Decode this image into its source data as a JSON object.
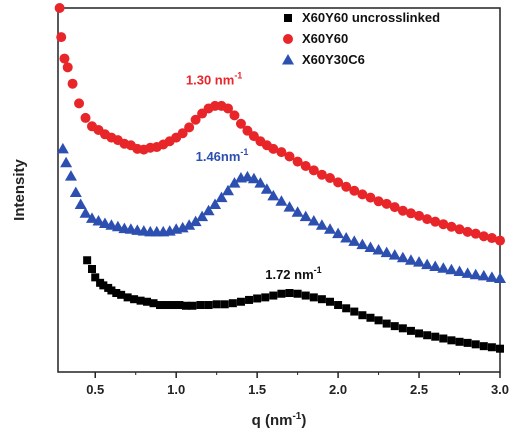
{
  "chart_data": {
    "type": "scatter",
    "title": "",
    "xlabel": "q (nm",
    "xlabel_sup": "-1",
    "xlabel_suffix": ")",
    "ylabel": "Intensity",
    "xlim": [
      0.27,
      3.0
    ],
    "ylim": [
      0,
      100
    ],
    "x_ticks": [
      "0.5",
      "1.0",
      "1.5",
      "2.0",
      "2.5",
      "3.0"
    ],
    "x_tick_values": [
      0.5,
      1.0,
      1.5,
      2.0,
      2.5,
      3.0
    ],
    "y_ticks_shown": false,
    "legend_position": "top-right",
    "series": [
      {
        "name": "X60Y60 uncrosslinked",
        "color": "#000000",
        "marker": "square",
        "points": [
          [
            0.45,
            30.7
          ],
          [
            0.48,
            28.3
          ],
          [
            0.5,
            26.0
          ],
          [
            0.53,
            24.5
          ],
          [
            0.55,
            23.8
          ],
          [
            0.58,
            23.1
          ],
          [
            0.6,
            22.4
          ],
          [
            0.63,
            21.7
          ],
          [
            0.66,
            21.2
          ],
          [
            0.7,
            20.5
          ],
          [
            0.74,
            20.0
          ],
          [
            0.78,
            19.6
          ],
          [
            0.82,
            19.3
          ],
          [
            0.86,
            18.9
          ],
          [
            0.9,
            18.4
          ],
          [
            0.94,
            18.4
          ],
          [
            0.98,
            18.4
          ],
          [
            1.02,
            18.4
          ],
          [
            1.06,
            18.2
          ],
          [
            1.1,
            18.2
          ],
          [
            1.15,
            18.4
          ],
          [
            1.2,
            18.4
          ],
          [
            1.25,
            18.6
          ],
          [
            1.3,
            18.6
          ],
          [
            1.35,
            18.9
          ],
          [
            1.4,
            19.3
          ],
          [
            1.45,
            19.8
          ],
          [
            1.5,
            20.2
          ],
          [
            1.55,
            20.5
          ],
          [
            1.6,
            21.0
          ],
          [
            1.65,
            21.5
          ],
          [
            1.7,
            21.7
          ],
          [
            1.75,
            21.5
          ],
          [
            1.8,
            21.0
          ],
          [
            1.85,
            20.5
          ],
          [
            1.9,
            20.0
          ],
          [
            1.95,
            19.3
          ],
          [
            2.0,
            18.4
          ],
          [
            2.05,
            17.5
          ],
          [
            2.1,
            16.6
          ],
          [
            2.15,
            15.6
          ],
          [
            2.2,
            14.9
          ],
          [
            2.25,
            14.2
          ],
          [
            2.3,
            13.3
          ],
          [
            2.35,
            12.6
          ],
          [
            2.4,
            12.0
          ],
          [
            2.45,
            11.3
          ],
          [
            2.5,
            10.6
          ],
          [
            2.55,
            10.1
          ],
          [
            2.6,
            9.7
          ],
          [
            2.65,
            9.2
          ],
          [
            2.7,
            8.7
          ],
          [
            2.75,
            8.3
          ],
          [
            2.8,
            8.0
          ],
          [
            2.85,
            7.6
          ],
          [
            2.9,
            7.1
          ],
          [
            2.95,
            6.8
          ],
          [
            3.0,
            6.4
          ]
        ]
      },
      {
        "name": "X60Y60",
        "color": "#e8262a",
        "marker": "circle",
        "points": [
          [
            0.28,
            100.0
          ],
          [
            0.29,
            92.0
          ],
          [
            0.31,
            86.1
          ],
          [
            0.33,
            83.7
          ],
          [
            0.36,
            79.2
          ],
          [
            0.4,
            73.8
          ],
          [
            0.44,
            69.8
          ],
          [
            0.48,
            67.5
          ],
          [
            0.52,
            66.5
          ],
          [
            0.56,
            65.3
          ],
          [
            0.6,
            64.4
          ],
          [
            0.64,
            63.7
          ],
          [
            0.68,
            62.7
          ],
          [
            0.72,
            62.3
          ],
          [
            0.76,
            61.3
          ],
          [
            0.8,
            61.1
          ],
          [
            0.84,
            61.6
          ],
          [
            0.88,
            61.8
          ],
          [
            0.92,
            62.5
          ],
          [
            0.96,
            63.4
          ],
          [
            1.0,
            64.4
          ],
          [
            1.04,
            65.6
          ],
          [
            1.08,
            67.2
          ],
          [
            1.12,
            69.3
          ],
          [
            1.16,
            71.0
          ],
          [
            1.2,
            72.4
          ],
          [
            1.24,
            73.1
          ],
          [
            1.28,
            73.1
          ],
          [
            1.32,
            72.4
          ],
          [
            1.36,
            70.5
          ],
          [
            1.4,
            68.2
          ],
          [
            1.44,
            66.3
          ],
          [
            1.48,
            64.8
          ],
          [
            1.52,
            63.4
          ],
          [
            1.56,
            62.3
          ],
          [
            1.6,
            61.3
          ],
          [
            1.65,
            60.4
          ],
          [
            1.7,
            59.2
          ],
          [
            1.75,
            57.8
          ],
          [
            1.8,
            56.6
          ],
          [
            1.85,
            55.4
          ],
          [
            1.9,
            54.2
          ],
          [
            1.95,
            53.3
          ],
          [
            2.0,
            52.1
          ],
          [
            2.05,
            50.9
          ],
          [
            2.1,
            49.8
          ],
          [
            2.15,
            48.8
          ],
          [
            2.2,
            47.9
          ],
          [
            2.25,
            46.9
          ],
          [
            2.3,
            46.2
          ],
          [
            2.35,
            45.3
          ],
          [
            2.4,
            44.3
          ],
          [
            2.45,
            43.6
          ],
          [
            2.5,
            42.9
          ],
          [
            2.55,
            42.0
          ],
          [
            2.6,
            41.3
          ],
          [
            2.65,
            40.6
          ],
          [
            2.7,
            39.9
          ],
          [
            2.75,
            39.2
          ],
          [
            2.8,
            38.5
          ],
          [
            2.85,
            38.0
          ],
          [
            2.9,
            37.3
          ],
          [
            2.95,
            36.8
          ],
          [
            3.0,
            36.1
          ]
        ]
      },
      {
        "name": "X60Y30C6",
        "color": "#2d4fb0",
        "marker": "triangle",
        "points": [
          [
            0.3,
            61.3
          ],
          [
            0.32,
            57.5
          ],
          [
            0.35,
            53.8
          ],
          [
            0.38,
            49.3
          ],
          [
            0.41,
            46.0
          ],
          [
            0.44,
            43.6
          ],
          [
            0.48,
            42.2
          ],
          [
            0.52,
            41.5
          ],
          [
            0.56,
            40.8
          ],
          [
            0.6,
            40.3
          ],
          [
            0.64,
            39.9
          ],
          [
            0.68,
            39.4
          ],
          [
            0.72,
            39.2
          ],
          [
            0.76,
            38.9
          ],
          [
            0.8,
            38.7
          ],
          [
            0.84,
            38.5
          ],
          [
            0.88,
            38.5
          ],
          [
            0.92,
            38.5
          ],
          [
            0.96,
            38.7
          ],
          [
            1.0,
            39.2
          ],
          [
            1.04,
            39.6
          ],
          [
            1.08,
            40.3
          ],
          [
            1.12,
            41.3
          ],
          [
            1.16,
            42.7
          ],
          [
            1.2,
            44.3
          ],
          [
            1.24,
            46.0
          ],
          [
            1.28,
            47.9
          ],
          [
            1.32,
            49.8
          ],
          [
            1.36,
            51.9
          ],
          [
            1.4,
            53.3
          ],
          [
            1.44,
            53.6
          ],
          [
            1.48,
            53.1
          ],
          [
            1.52,
            51.9
          ],
          [
            1.56,
            50.2
          ],
          [
            1.6,
            48.4
          ],
          [
            1.65,
            46.9
          ],
          [
            1.7,
            45.3
          ],
          [
            1.75,
            43.9
          ],
          [
            1.8,
            42.7
          ],
          [
            1.85,
            41.5
          ],
          [
            1.9,
            40.3
          ],
          [
            1.95,
            39.2
          ],
          [
            2.0,
            38.0
          ],
          [
            2.05,
            36.8
          ],
          [
            2.1,
            35.9
          ],
          [
            2.15,
            35.0
          ],
          [
            2.2,
            34.2
          ],
          [
            2.25,
            33.5
          ],
          [
            2.3,
            32.8
          ],
          [
            2.35,
            32.1
          ],
          [
            2.4,
            31.4
          ],
          [
            2.45,
            30.7
          ],
          [
            2.5,
            30.2
          ],
          [
            2.55,
            29.5
          ],
          [
            2.6,
            29.0
          ],
          [
            2.65,
            28.5
          ],
          [
            2.7,
            28.1
          ],
          [
            2.75,
            27.6
          ],
          [
            2.8,
            27.1
          ],
          [
            2.85,
            26.7
          ],
          [
            2.9,
            26.4
          ],
          [
            2.95,
            26.0
          ],
          [
            3.0,
            25.7
          ]
        ]
      }
    ],
    "annotations": [
      {
        "text": "1.30 nm",
        "sup": "-1",
        "x": 1.06,
        "y": 79.0,
        "color": "#e8262a"
      },
      {
        "text": "1.46nm",
        "sup": "-1",
        "x": 1.12,
        "y": 58.0,
        "color": "#2d4fb0"
      },
      {
        "text": "1.72 nm",
        "sup": "-1",
        "x": 1.55,
        "y": 25.5,
        "color": "#111111"
      }
    ]
  }
}
